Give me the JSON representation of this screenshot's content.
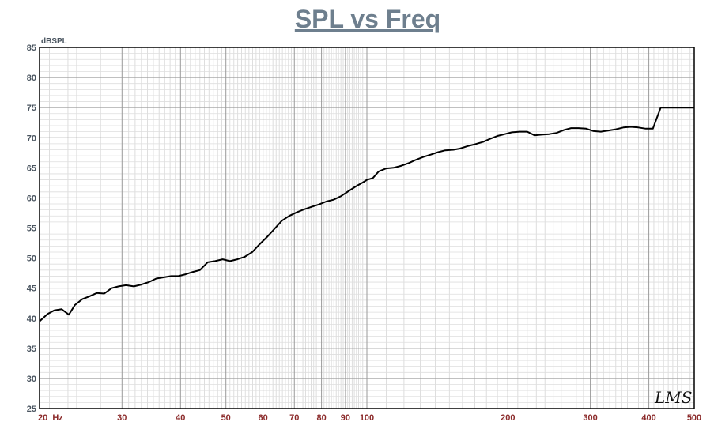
{
  "chart_data": {
    "type": "line",
    "title": "SPL vs Freq",
    "ylabel": "dBSPL",
    "xscale": "log",
    "xlim": [
      20,
      500
    ],
    "ylim": [
      25,
      85
    ],
    "grid": true,
    "x_tick_values": [
      20,
      30,
      40,
      50,
      60,
      70,
      80,
      90,
      100,
      200,
      300,
      400,
      500
    ],
    "x_tick_labels": [
      "20  Hz",
      "30",
      "40",
      "50",
      "60",
      "70",
      "80",
      "90",
      "100",
      "200",
      "300",
      "400",
      "500"
    ],
    "y_ticks": [
      25,
      30,
      35,
      40,
      45,
      50,
      55,
      60,
      65,
      70,
      75,
      80,
      85
    ],
    "line_color": "#000000",
    "series": [
      {
        "x": [
          20,
          20.8,
          21.5,
          22.3,
          23.1,
          23.8,
          24.7,
          25.5,
          26.5,
          27.5,
          28.5,
          29.5,
          30.6,
          31.8,
          33,
          34.2,
          35.5,
          36.8,
          38.2,
          39.6,
          41,
          42.5,
          44,
          45.7,
          47.4,
          49.2,
          51,
          52.9,
          54.8,
          56.9,
          59,
          61.2,
          63.4,
          65.8,
          68.2,
          70.8,
          73.4,
          76.1,
          78.9,
          81.9,
          84.9,
          88.1,
          91.3,
          94.7,
          98.2,
          100,
          103,
          106,
          110,
          114,
          118,
          123,
          127,
          132,
          137,
          142,
          147,
          153,
          158,
          164,
          170,
          177,
          183,
          190,
          197,
          204,
          212,
          220,
          228,
          236,
          245,
          254,
          264,
          273,
          283,
          294,
          305,
          316,
          328,
          340,
          353,
          366,
          380,
          394,
          408,
          424,
          439,
          456,
          473,
          490,
          500
        ],
        "y": [
          39.5,
          40.7,
          41.3,
          41.5,
          40.6,
          42.2,
          43.2,
          43.6,
          44.2,
          44.1,
          45.0,
          45.3,
          45.5,
          45.3,
          45.6,
          46.0,
          46.6,
          46.8,
          47.0,
          47.0,
          47.3,
          47.7,
          48.0,
          49.3,
          49.5,
          49.8,
          49.5,
          49.8,
          50.2,
          51.0,
          52.3,
          53.5,
          54.8,
          56.2,
          57.0,
          57.6,
          58.1,
          58.5,
          58.9,
          59.4,
          59.7,
          60.3,
          61.1,
          61.9,
          62.6,
          63.0,
          63.3,
          64.4,
          64.9,
          65.0,
          65.3,
          65.8,
          66.3,
          66.8,
          67.2,
          67.6,
          67.9,
          68.0,
          68.2,
          68.6,
          68.9,
          69.3,
          69.8,
          70.3,
          70.6,
          70.9,
          71.0,
          71.0,
          70.4,
          70.5,
          70.6,
          70.8,
          71.3,
          71.6,
          71.6,
          71.5,
          71.1,
          71.0,
          71.2,
          71.4,
          71.7,
          71.8,
          71.7,
          71.5,
          71.5,
          75.0,
          75.0,
          75.0,
          75.0,
          75.0,
          75.0
        ]
      }
    ]
  },
  "logo_text": "LMS"
}
